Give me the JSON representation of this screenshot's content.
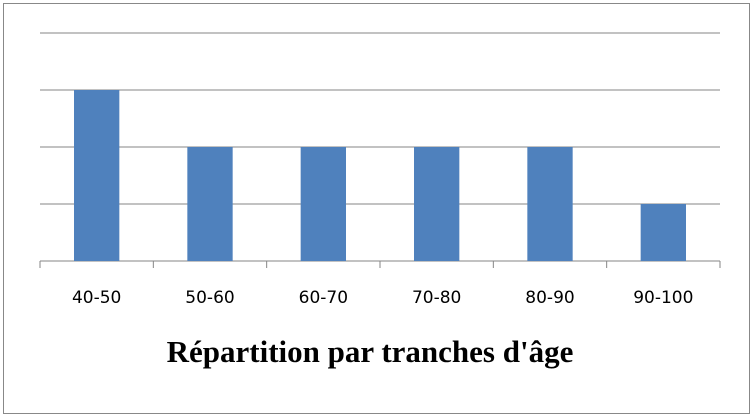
{
  "chart_data": {
    "type": "bar",
    "title": "Répartition par tranches d'âge",
    "categories": [
      "40-50",
      "50-60",
      "60-70",
      "70-80",
      "80-90",
      "90-100"
    ],
    "values": [
      3,
      2,
      2,
      2,
      2,
      1
    ],
    "color": "#4f81bd",
    "ylim": [
      0,
      4
    ],
    "yticks": [
      0,
      1,
      2,
      3,
      4
    ],
    "grid": true
  }
}
